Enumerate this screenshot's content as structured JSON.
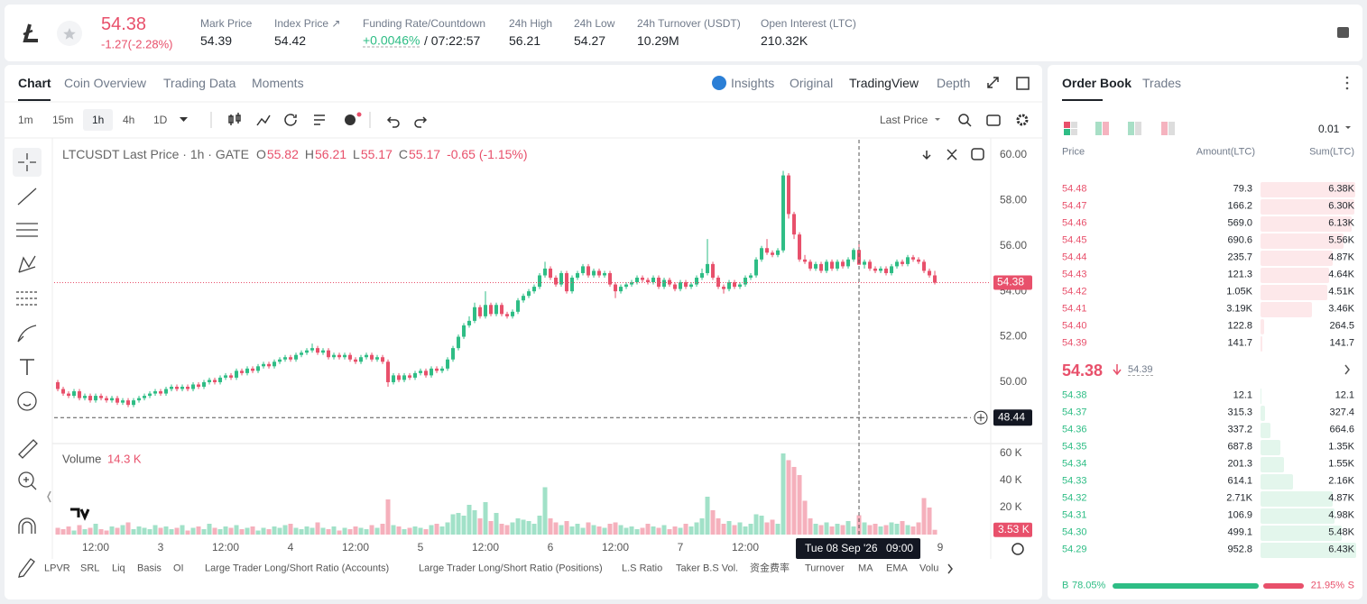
{
  "header": {
    "price": "54.38",
    "change": "-1.27(-2.28%)",
    "stats": [
      {
        "label": "Mark Price",
        "value": "54.39"
      },
      {
        "label": "Index Price ↗",
        "value": "54.42"
      },
      {
        "label": "Funding Rate/Countdown",
        "value": "+0.0046%",
        "extra": "/ 07:22:57"
      },
      {
        "label": "24h High",
        "value": "56.21"
      },
      {
        "label": "24h Low",
        "value": "54.27"
      },
      {
        "label": "24h Turnover (USDT)",
        "value": "10.29M"
      },
      {
        "label": "Open Interest (LTC)",
        "value": "210.32K"
      }
    ]
  },
  "tabs": [
    "Chart",
    "Coin Overview",
    "Trading Data",
    "Moments"
  ],
  "views": [
    "Insights",
    "Original",
    "TradingView",
    "Depth"
  ],
  "intervals": [
    "1m",
    "15m",
    "1h",
    "4h",
    "1D"
  ],
  "price_type": "Last Price",
  "indicators": [
    "LPVR",
    "SRL",
    "Liq",
    "Basis",
    "OI",
    "Large Trader Long/Short Ratio (Accounts)",
    "Large Trader Long/Short Ratio (Positions)",
    "L.S Ratio",
    "Taker B.S Vol.",
    "资金费率",
    "Turnover",
    "MA",
    "EMA",
    "Volu"
  ],
  "chart_data": {
    "type": "candlestick",
    "title": "LTCUSDT Last Price · 1h · GATE",
    "ohlc_letters": [
      "O",
      "H",
      "L",
      "C"
    ],
    "change_label": "-0.65 (-1.15%)",
    "up_color": "#2ebd85",
    "down_color": "#e8506b",
    "xlim": [
      -0.67,
      172.33
    ],
    "xticks": [
      {
        "value": 7,
        "label": "12:00"
      },
      {
        "value": 19,
        "label": "3"
      },
      {
        "value": 31,
        "label": "12:00"
      },
      {
        "value": 43,
        "label": "4"
      },
      {
        "value": 55,
        "label": "12:00"
      },
      {
        "value": 67,
        "label": "5"
      },
      {
        "value": 79,
        "label": "12:00"
      },
      {
        "value": 91,
        "label": "6"
      },
      {
        "value": 103,
        "label": "12:00"
      },
      {
        "value": 115,
        "label": "7"
      },
      {
        "value": 127,
        "label": "12:00"
      },
      {
        "value": 163,
        "label": "9"
      }
    ],
    "ylim": [
      47.38,
      60.67
    ],
    "yticks": [
      {
        "value": 50,
        "label": "50.00"
      },
      {
        "value": 52,
        "label": "52.00"
      },
      {
        "value": 54,
        "label": "54.00"
      },
      {
        "value": 56,
        "label": "56.00"
      },
      {
        "value": 58,
        "label": "58.00"
      },
      {
        "value": 60,
        "label": "60.00"
      }
    ],
    "candles": [
      [
        50.0,
        50.1,
        49.6,
        49.7
      ],
      [
        49.7,
        49.8,
        49.4,
        49.5
      ],
      [
        49.5,
        49.6,
        49.3,
        49.4
      ],
      [
        49.4,
        49.7,
        49.3,
        49.6
      ],
      [
        49.6,
        49.7,
        49.2,
        49.3
      ],
      [
        49.3,
        49.5,
        49.2,
        49.4
      ],
      [
        49.4,
        49.5,
        49.1,
        49.2
      ],
      [
        49.2,
        49.5,
        49.1,
        49.4
      ],
      [
        49.4,
        49.5,
        49.2,
        49.3
      ],
      [
        49.3,
        49.4,
        49.1,
        49.2
      ],
      [
        49.2,
        49.4,
        49.1,
        49.3
      ],
      [
        49.3,
        49.4,
        49.0,
        49.1
      ],
      [
        49.1,
        49.3,
        49.0,
        49.2
      ],
      [
        49.2,
        49.3,
        48.9,
        49.0
      ],
      [
        49.0,
        49.3,
        48.9,
        49.2
      ],
      [
        49.2,
        49.4,
        49.1,
        49.3
      ],
      [
        49.3,
        49.5,
        49.2,
        49.4
      ],
      [
        49.4,
        49.6,
        49.3,
        49.5
      ],
      [
        49.5,
        49.7,
        49.4,
        49.6
      ],
      [
        49.6,
        49.7,
        49.4,
        49.5
      ],
      [
        49.5,
        49.8,
        49.4,
        49.7
      ],
      [
        49.7,
        49.9,
        49.6,
        49.8
      ],
      [
        49.8,
        49.9,
        49.6,
        49.7
      ],
      [
        49.7,
        49.9,
        49.6,
        49.8
      ],
      [
        49.8,
        49.9,
        49.6,
        49.7
      ],
      [
        49.7,
        50.0,
        49.6,
        49.9
      ],
      [
        49.9,
        50.0,
        49.7,
        49.8
      ],
      [
        49.8,
        50.1,
        49.7,
        50.0
      ],
      [
        50.0,
        50.2,
        49.9,
        50.1
      ],
      [
        50.1,
        50.2,
        49.9,
        50.0
      ],
      [
        50.0,
        50.3,
        49.9,
        50.2
      ],
      [
        50.2,
        50.4,
        50.1,
        50.3
      ],
      [
        50.3,
        50.4,
        50.1,
        50.2
      ],
      [
        50.2,
        50.6,
        50.1,
        50.5
      ],
      [
        50.5,
        50.6,
        50.3,
        50.4
      ],
      [
        50.4,
        50.7,
        50.3,
        50.6
      ],
      [
        50.6,
        50.7,
        50.4,
        50.5
      ],
      [
        50.5,
        50.8,
        50.4,
        50.7
      ],
      [
        50.7,
        50.9,
        50.6,
        50.8
      ],
      [
        50.8,
        50.9,
        50.6,
        50.7
      ],
      [
        50.7,
        51.0,
        50.6,
        50.9
      ],
      [
        50.9,
        51.1,
        50.8,
        51.0
      ],
      [
        51.0,
        51.2,
        50.9,
        51.1
      ],
      [
        51.1,
        51.2,
        50.9,
        51.0
      ],
      [
        51.0,
        51.3,
        50.9,
        51.2
      ],
      [
        51.2,
        51.4,
        51.1,
        51.3
      ],
      [
        51.3,
        51.5,
        51.2,
        51.4
      ],
      [
        51.4,
        51.7,
        51.3,
        51.5
      ],
      [
        51.5,
        51.6,
        51.2,
        51.3
      ],
      [
        51.3,
        51.5,
        51.2,
        51.4
      ],
      [
        51.4,
        51.5,
        51.0,
        51.1
      ],
      [
        51.1,
        51.3,
        51.0,
        51.2
      ],
      [
        51.2,
        51.3,
        51.0,
        51.1
      ],
      [
        51.1,
        51.3,
        51.0,
        51.2
      ],
      [
        51.2,
        51.3,
        50.9,
        51.0
      ],
      [
        51.0,
        51.1,
        50.8,
        50.9
      ],
      [
        50.9,
        51.2,
        50.8,
        51.1
      ],
      [
        51.1,
        51.3,
        51.0,
        51.2
      ],
      [
        51.2,
        51.3,
        50.9,
        51.0
      ],
      [
        51.0,
        51.2,
        50.9,
        51.1
      ],
      [
        51.1,
        51.2,
        50.8,
        50.9
      ],
      [
        50.9,
        51.0,
        49.8,
        50.0
      ],
      [
        50.0,
        50.4,
        49.9,
        50.3
      ],
      [
        50.3,
        50.4,
        50.0,
        50.1
      ],
      [
        50.1,
        50.4,
        50.0,
        50.3
      ],
      [
        50.3,
        50.4,
        50.1,
        50.2
      ],
      [
        50.2,
        50.5,
        50.1,
        50.4
      ],
      [
        50.4,
        50.6,
        50.3,
        50.5
      ],
      [
        50.5,
        50.6,
        50.2,
        50.3
      ],
      [
        50.3,
        50.7,
        50.2,
        50.6
      ],
      [
        50.6,
        50.7,
        50.4,
        50.5
      ],
      [
        50.5,
        50.7,
        50.4,
        50.6
      ],
      [
        50.6,
        51.1,
        50.5,
        51.0
      ],
      [
        51.0,
        51.6,
        50.9,
        51.5
      ],
      [
        51.5,
        52.1,
        51.4,
        52.0
      ],
      [
        52.0,
        52.6,
        51.9,
        52.5
      ],
      [
        52.5,
        52.9,
        52.4,
        52.7
      ],
      [
        52.7,
        53.5,
        52.6,
        53.3
      ],
      [
        53.3,
        53.4,
        52.8,
        52.9
      ],
      [
        52.9,
        54.0,
        52.8,
        53.4
      ],
      [
        53.4,
        53.5,
        52.9,
        53.0
      ],
      [
        53.0,
        53.5,
        52.9,
        53.4
      ],
      [
        53.4,
        53.5,
        52.9,
        53.0
      ],
      [
        53.0,
        53.1,
        52.8,
        52.9
      ],
      [
        52.9,
        53.2,
        52.8,
        53.1
      ],
      [
        53.1,
        53.7,
        53.0,
        53.6
      ],
      [
        53.6,
        53.9,
        53.5,
        53.8
      ],
      [
        53.8,
        54.1,
        53.7,
        54.0
      ],
      [
        54.0,
        54.3,
        53.9,
        54.2
      ],
      [
        54.2,
        54.8,
        54.1,
        54.7
      ],
      [
        54.7,
        55.3,
        54.6,
        55.0
      ],
      [
        55.0,
        55.1,
        54.5,
        54.6
      ],
      [
        54.6,
        54.7,
        54.2,
        54.3
      ],
      [
        54.3,
        54.9,
        54.2,
        54.8
      ],
      [
        54.8,
        54.9,
        53.9,
        54.0
      ],
      [
        54.0,
        54.7,
        53.9,
        54.6
      ],
      [
        54.6,
        54.9,
        54.5,
        54.8
      ],
      [
        54.8,
        55.2,
        54.7,
        55.1
      ],
      [
        55.1,
        55.2,
        54.6,
        54.7
      ],
      [
        54.7,
        55.0,
        54.6,
        54.9
      ],
      [
        54.9,
        55.0,
        54.6,
        54.7
      ],
      [
        54.7,
        54.9,
        54.6,
        54.8
      ],
      [
        54.8,
        54.9,
        54.2,
        54.3
      ],
      [
        54.3,
        54.4,
        53.7,
        54.0
      ],
      [
        54.0,
        54.3,
        53.9,
        54.2
      ],
      [
        54.2,
        54.4,
        54.1,
        54.3
      ],
      [
        54.3,
        54.5,
        54.2,
        54.4
      ],
      [
        54.4,
        54.7,
        54.3,
        54.6
      ],
      [
        54.6,
        54.7,
        54.4,
        54.5
      ],
      [
        54.5,
        54.6,
        54.3,
        54.4
      ],
      [
        54.4,
        54.7,
        54.3,
        54.6
      ],
      [
        54.6,
        54.7,
        54.1,
        54.2
      ],
      [
        54.2,
        54.6,
        54.1,
        54.5
      ],
      [
        54.5,
        54.6,
        54.2,
        54.3
      ],
      [
        54.3,
        54.4,
        54.0,
        54.1
      ],
      [
        54.1,
        54.5,
        54.0,
        54.4
      ],
      [
        54.4,
        54.5,
        54.1,
        54.2
      ],
      [
        54.2,
        54.4,
        54.1,
        54.3
      ],
      [
        54.3,
        54.7,
        54.2,
        54.6
      ],
      [
        54.6,
        55.0,
        54.5,
        54.8
      ],
      [
        54.8,
        56.3,
        54.7,
        55.2
      ],
      [
        55.2,
        55.3,
        54.5,
        54.6
      ],
      [
        54.6,
        54.7,
        54.1,
        54.2
      ],
      [
        54.2,
        54.3,
        53.9,
        54.1
      ],
      [
        54.1,
        54.5,
        54.0,
        54.4
      ],
      [
        54.4,
        54.5,
        54.1,
        54.2
      ],
      [
        54.2,
        54.4,
        54.1,
        54.3
      ],
      [
        54.3,
        54.7,
        54.2,
        54.6
      ],
      [
        54.6,
        54.8,
        54.5,
        54.7
      ],
      [
        54.7,
        55.5,
        54.6,
        55.4
      ],
      [
        55.4,
        56.0,
        55.3,
        55.9
      ],
      [
        55.9,
        56.3,
        55.6,
        55.7
      ],
      [
        55.7,
        55.8,
        55.5,
        55.6
      ],
      [
        55.6,
        55.9,
        55.5,
        55.8
      ],
      [
        55.8,
        59.3,
        55.7,
        59.1
      ],
      [
        59.1,
        59.2,
        57.2,
        57.4
      ],
      [
        57.4,
        57.5,
        56.3,
        56.5
      ],
      [
        56.5,
        56.6,
        55.3,
        55.4
      ],
      [
        55.4,
        55.6,
        55.2,
        55.3
      ],
      [
        55.3,
        55.4,
        54.9,
        55.0
      ],
      [
        55.0,
        55.3,
        54.9,
        55.2
      ],
      [
        55.2,
        55.3,
        54.8,
        54.9
      ],
      [
        54.9,
        55.4,
        54.8,
        55.3
      ],
      [
        55.3,
        55.4,
        54.9,
        55.0
      ],
      [
        55.0,
        55.4,
        54.9,
        55.3
      ],
      [
        55.3,
        55.4,
        55.0,
        55.1
      ],
      [
        55.1,
        55.5,
        55.0,
        55.4
      ],
      [
        55.4,
        55.9,
        55.3,
        55.82
      ],
      [
        55.82,
        56.21,
        55.17,
        55.17
      ],
      [
        55.17,
        55.4,
        55.0,
        55.3
      ],
      [
        55.3,
        55.4,
        54.9,
        55.0
      ],
      [
        55.0,
        55.1,
        54.8,
        54.9
      ],
      [
        54.9,
        55.1,
        54.8,
        55.0
      ],
      [
        55.0,
        55.1,
        54.7,
        54.8
      ],
      [
        54.8,
        55.2,
        54.7,
        55.1
      ],
      [
        55.1,
        55.4,
        55.0,
        55.3
      ],
      [
        55.3,
        55.4,
        55.1,
        55.2
      ],
      [
        55.2,
        55.6,
        55.1,
        55.5
      ],
      [
        55.5,
        55.6,
        55.3,
        55.4
      ],
      [
        55.4,
        55.5,
        55.2,
        55.3
      ],
      [
        55.3,
        55.4,
        54.8,
        54.9
      ],
      [
        54.9,
        55.0,
        54.6,
        54.7
      ],
      [
        54.7,
        54.9,
        54.3,
        54.38
      ]
    ],
    "volume": {
      "name": "Volume",
      "legend_label": "14.3 K",
      "last_label": "3.53 K",
      "ylim": [
        0,
        65.3
      ],
      "yticks": [
        {
          "value": 20,
          "label": "20 K"
        },
        {
          "value": 40,
          "label": "40 K"
        },
        {
          "value": 60,
          "label": "60 K"
        }
      ],
      "values": [
        5,
        4,
        6,
        3,
        7,
        4,
        5,
        8,
        4,
        3,
        6,
        5,
        7,
        9,
        4,
        6,
        5,
        4,
        7,
        5,
        6,
        4,
        5,
        7,
        3,
        5,
        6,
        4,
        8,
        5,
        4,
        6,
        5,
        7,
        4,
        5,
        6,
        3,
        5,
        4,
        6,
        5,
        7,
        8,
        5,
        4,
        6,
        5,
        9,
        5,
        4,
        6,
        3,
        5,
        4,
        6,
        5,
        4,
        7,
        5,
        8,
        26,
        7,
        6,
        4,
        5,
        6,
        5,
        4,
        7,
        8,
        6,
        9,
        15,
        16,
        14,
        22,
        18,
        12,
        24,
        10,
        16,
        8,
        7,
        9,
        12,
        11,
        10,
        8,
        14,
        35,
        12,
        9,
        7,
        10,
        6,
        8,
        5,
        9,
        7,
        6,
        5,
        8,
        9,
        7,
        5,
        6,
        4,
        5,
        8,
        6,
        5,
        7,
        4,
        6,
        5,
        8,
        6,
        9,
        12,
        28,
        18,
        12,
        8,
        10,
        7,
        9,
        6,
        8,
        15,
        14,
        9,
        11,
        8,
        60,
        55,
        50,
        44,
        25,
        12,
        8,
        7,
        9,
        6,
        8,
        7,
        10,
        6,
        14.3,
        9,
        7,
        8,
        6,
        7,
        9,
        8,
        10,
        7,
        6,
        9,
        27,
        20,
        3.53
      ]
    },
    "crosshair": {
      "index": 148,
      "price": 48.44,
      "date": "Tue 08 Sep '26",
      "time": "09:00"
    }
  },
  "order_book": {
    "tabs": [
      "Order Book",
      "Trades"
    ],
    "precision": "0.01",
    "columns": [
      "Price",
      "Amount(LTC)",
      "Sum(LTC)"
    ],
    "asks": [
      [
        "54.48",
        "79.3",
        "6.38K"
      ],
      [
        "54.47",
        "166.2",
        "6.30K"
      ],
      [
        "54.46",
        "569.0",
        "6.13K"
      ],
      [
        "54.45",
        "690.6",
        "5.56K"
      ],
      [
        "54.44",
        "235.7",
        "4.87K"
      ],
      [
        "54.43",
        "121.3",
        "4.64K"
      ],
      [
        "54.42",
        "1.05K",
        "4.51K"
      ],
      [
        "54.41",
        "3.19K",
        "3.46K"
      ],
      [
        "54.40",
        "122.8",
        "264.5"
      ],
      [
        "54.39",
        "141.7",
        "141.7"
      ]
    ],
    "last_price": "54.38",
    "mark_price": "54.39",
    "bids": [
      [
        "54.38",
        "12.1",
        "12.1"
      ],
      [
        "54.37",
        "315.3",
        "327.4"
      ],
      [
        "54.36",
        "337.2",
        "664.6"
      ],
      [
        "54.35",
        "687.8",
        "1.35K"
      ],
      [
        "54.34",
        "201.3",
        "1.55K"
      ],
      [
        "54.33",
        "614.1",
        "2.16K"
      ],
      [
        "54.32",
        "2.71K",
        "4.87K"
      ],
      [
        "54.31",
        "106.9",
        "4.98K"
      ],
      [
        "54.30",
        "499.1",
        "5.48K"
      ],
      [
        "54.29",
        "952.8",
        "6.43K"
      ]
    ],
    "buy_letter": "B",
    "sell_letter": "S",
    "buy": {
      "value": 78.05,
      "label": "78.05%"
    },
    "sell": {
      "value": 21.95,
      "label": "21.95%"
    }
  }
}
